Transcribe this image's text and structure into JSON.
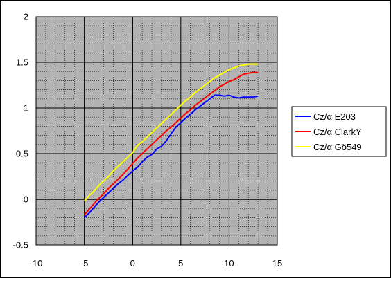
{
  "chart_data": {
    "type": "line",
    "title": "",
    "xlabel": "",
    "ylabel": "",
    "xlim": [
      -10,
      15
    ],
    "ylim": [
      -0.5,
      2
    ],
    "x_ticks": [
      -10,
      -5,
      0,
      5,
      10,
      15
    ],
    "y_ticks": [
      -0.5,
      0,
      0.5,
      1,
      1.5,
      2
    ],
    "x_tick_labels": [
      "-10",
      "-5",
      "0",
      "5",
      "10",
      "15"
    ],
    "y_tick_labels": [
      "-0.5",
      "0",
      "0.5",
      "1",
      "1.5",
      "2"
    ],
    "grid": true,
    "plot_background": "#b3b3b3",
    "legend_position": "right",
    "series": [
      {
        "name": "Cz/α  E203",
        "color": "#0000ff",
        "x": [
          -5,
          -4.5,
          -4,
          -3.5,
          -3,
          -2.5,
          -2,
          -1.5,
          -1,
          -0.5,
          0,
          0.5,
          1,
          1.5,
          2,
          2.5,
          3,
          3.5,
          4,
          4.5,
          5,
          5.5,
          6,
          6.5,
          7,
          7.5,
          8,
          8.5,
          9,
          9.5,
          10,
          10.5,
          11,
          11.5,
          12,
          12.5,
          13
        ],
        "y": [
          -0.2,
          -0.15,
          -0.09,
          -0.03,
          0.02,
          0.07,
          0.12,
          0.17,
          0.21,
          0.26,
          0.31,
          0.35,
          0.41,
          0.46,
          0.49,
          0.55,
          0.58,
          0.64,
          0.72,
          0.79,
          0.84,
          0.89,
          0.93,
          0.98,
          1.02,
          1.06,
          1.1,
          1.14,
          1.14,
          1.13,
          1.14,
          1.12,
          1.11,
          1.12,
          1.12,
          1.12,
          1.13
        ]
      },
      {
        "name": "Cz/α  ClarkY",
        "color": "#ff0000",
        "x": [
          -5,
          -4.5,
          -4,
          -3.5,
          -3,
          -2.5,
          -2,
          -1.5,
          -1,
          -0.5,
          0,
          0.5,
          1,
          1.5,
          2,
          2.5,
          3,
          3.5,
          4,
          4.5,
          5,
          5.5,
          6,
          6.5,
          7,
          7.5,
          8,
          8.5,
          9,
          9.5,
          10,
          10.5,
          11,
          11.5,
          12,
          12.5,
          13
        ],
        "y": [
          -0.17,
          -0.11,
          -0.05,
          0.01,
          0.06,
          0.12,
          0.17,
          0.22,
          0.27,
          0.33,
          0.39,
          0.45,
          0.5,
          0.55,
          0.6,
          0.65,
          0.7,
          0.75,
          0.79,
          0.84,
          0.89,
          0.94,
          0.98,
          1.03,
          1.07,
          1.11,
          1.15,
          1.19,
          1.23,
          1.26,
          1.29,
          1.31,
          1.34,
          1.37,
          1.38,
          1.39,
          1.39
        ]
      },
      {
        "name": "Cz/α  Gö549",
        "color": "#ffff00",
        "x": [
          -5,
          -4.5,
          -4,
          -3.5,
          -3,
          -2.5,
          -2,
          -1.5,
          -1,
          -0.5,
          0,
          0.5,
          1,
          1.5,
          2,
          2.5,
          3,
          3.5,
          4,
          4.5,
          5,
          5.5,
          6,
          6.5,
          7,
          7.5,
          8,
          8.5,
          9,
          9.5,
          10,
          10.5,
          11,
          11.5,
          12,
          12.5,
          13
        ],
        "y": [
          -0.02,
          0.04,
          0.09,
          0.15,
          0.2,
          0.25,
          0.31,
          0.36,
          0.41,
          0.46,
          0.51,
          0.59,
          0.63,
          0.68,
          0.73,
          0.78,
          0.83,
          0.88,
          0.93,
          0.98,
          1.03,
          1.08,
          1.12,
          1.17,
          1.21,
          1.25,
          1.29,
          1.33,
          1.36,
          1.39,
          1.42,
          1.44,
          1.46,
          1.47,
          1.48,
          1.48,
          1.48
        ]
      }
    ]
  }
}
